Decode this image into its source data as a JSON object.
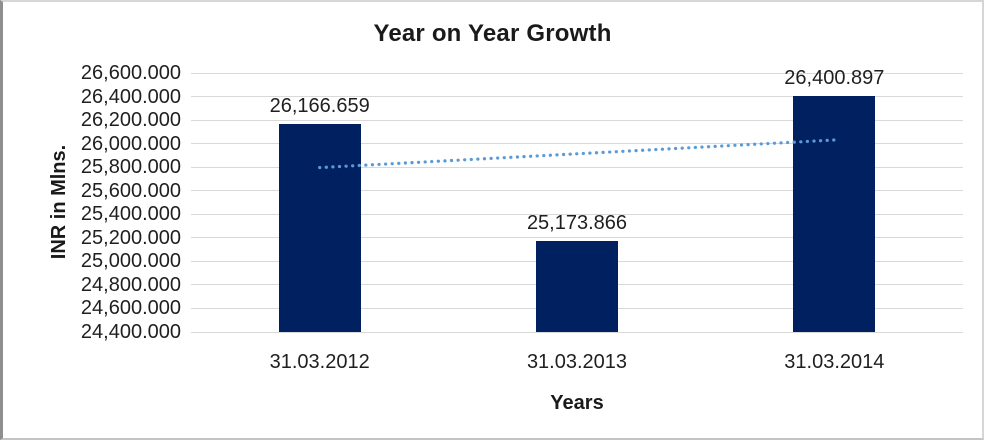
{
  "chart_data": {
    "type": "bar",
    "title": "Year on Year Growth",
    "xlabel": "Years",
    "ylabel": "INR in Mlns.",
    "categories": [
      "31.03.2012",
      "31.03.2013",
      "31.03.2014"
    ],
    "values": [
      26166.659,
      25173.866,
      26400.897
    ],
    "data_labels": [
      "26,166.659",
      "25,173.866",
      "26,400.897"
    ],
    "ylim": [
      24400,
      26600
    ],
    "ytick_step": 200,
    "ytick_labels": [
      "26,600.000",
      "26,400.000",
      "26,200.000",
      "26,000.000",
      "25,800.000",
      "25,600.000",
      "25,400.000",
      "25,200.000",
      "25,000.000",
      "24,800.000",
      "24,600.000",
      "24,400.000"
    ],
    "grid": true,
    "legend": "none",
    "trendline": {
      "type": "linear",
      "style": "dotted"
    },
    "colors": {
      "bar": "#002060",
      "trendline": "#5b9bd5",
      "gridline": "#d9d9d9",
      "text": "#1f1f1f"
    }
  }
}
